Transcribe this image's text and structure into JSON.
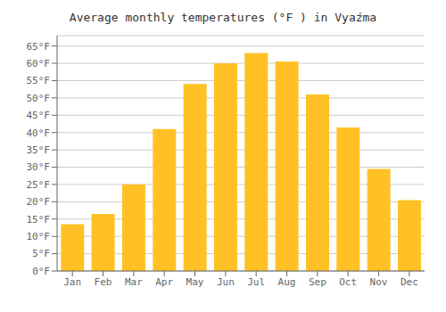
{
  "chart_data": {
    "type": "bar",
    "title": "Average monthly temperatures (°F ) in Vyaź​ma",
    "categories": [
      "Jan",
      "Feb",
      "Mar",
      "Apr",
      "May",
      "Jun",
      "Jul",
      "Aug",
      "Sep",
      "Oct",
      "Nov",
      "Dec"
    ],
    "values": [
      13.5,
      16.5,
      25,
      41,
      54,
      60,
      63,
      60.5,
      51,
      41.5,
      29.5,
      20.5
    ],
    "color": "#FFC125",
    "ylim": [
      0,
      68
    ],
    "yticks": [
      {
        "value": 0,
        "label": "0°F"
      },
      {
        "value": 5,
        "label": "5°F"
      },
      {
        "value": 10,
        "label": "10°F"
      },
      {
        "value": 15,
        "label": "15°F"
      },
      {
        "value": 20,
        "label": "20°F"
      },
      {
        "value": 25,
        "label": "25°F"
      },
      {
        "value": 30,
        "label": "30°F"
      },
      {
        "value": 35,
        "label": "35°F"
      },
      {
        "value": 40,
        "label": "40°F"
      },
      {
        "value": 45,
        "label": "45°F"
      },
      {
        "value": 50,
        "label": "50°F"
      },
      {
        "value": 55,
        "label": "55°F"
      },
      {
        "value": 60,
        "label": "60°F"
      },
      {
        "value": 65,
        "label": "65°F"
      }
    ],
    "grid": true
  }
}
